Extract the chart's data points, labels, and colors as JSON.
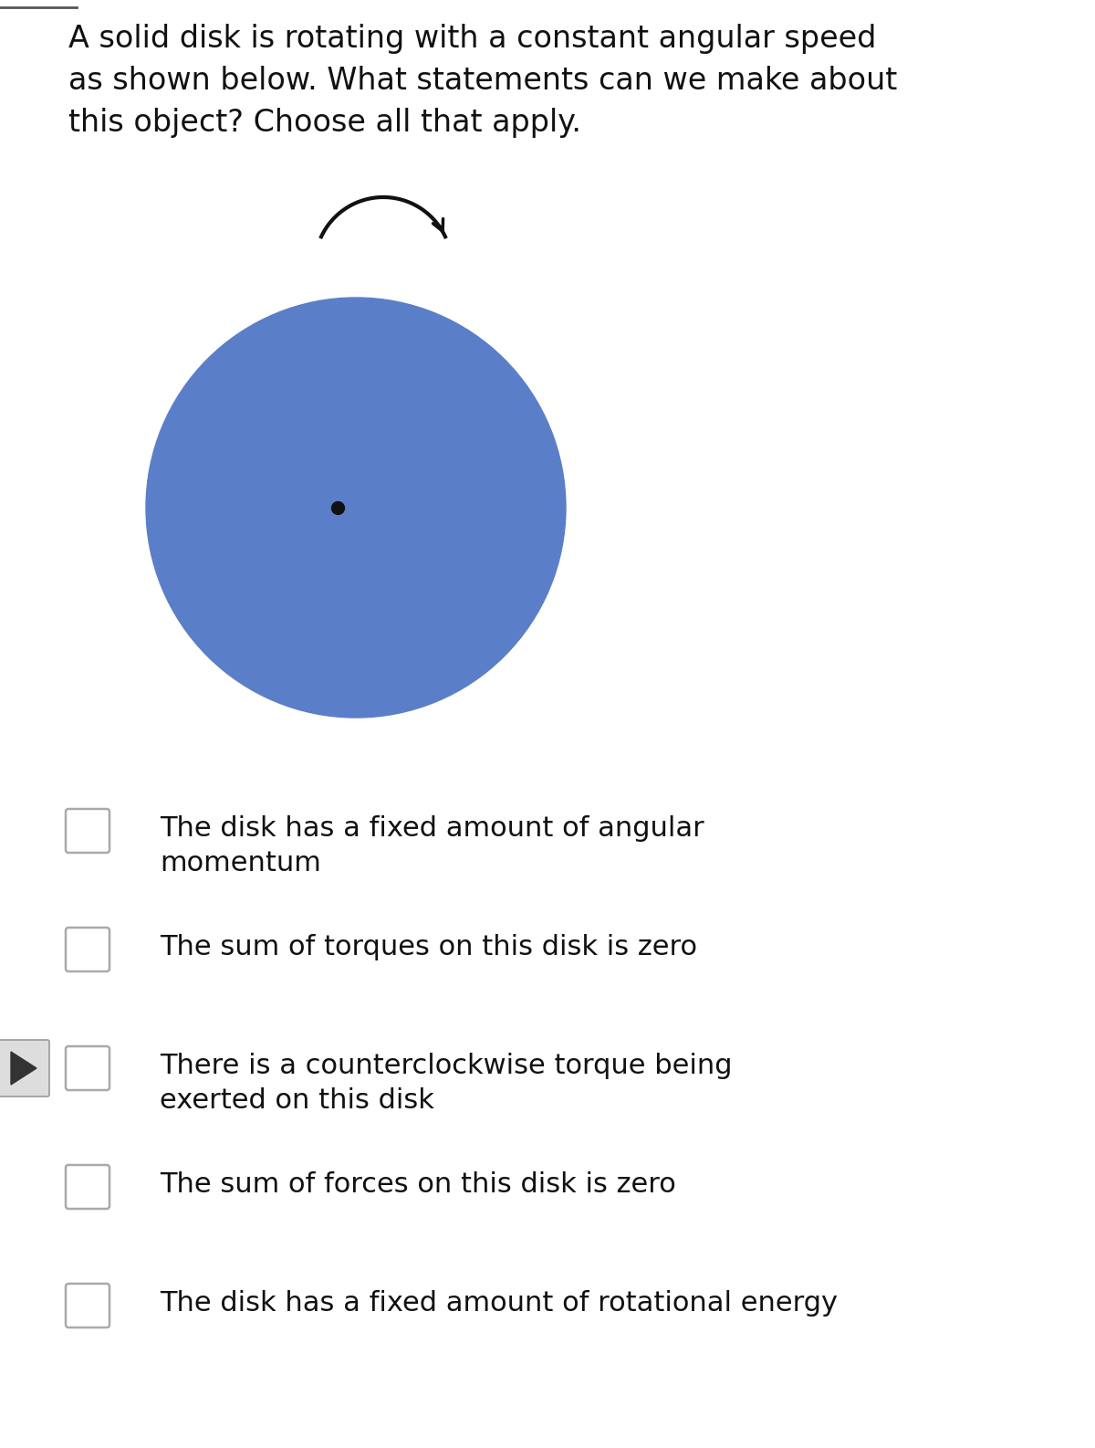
{
  "background_color": "#ffffff",
  "question_text": "A solid disk is rotating with a constant angular speed\nas shown below. What statements can we make about\nthis object? Choose all that apply.",
  "question_fontsize": 24,
  "disk_color": "#5b7ec9",
  "dot_color": "#111111",
  "arrow_color": "#111111",
  "choices": [
    "The disk has a fixed amount of angular\nmomentum",
    "The sum of torques on this disk is zero",
    "There is a counterclockwise torque being\nexerted on this disk",
    "The sum of forces on this disk is zero",
    "The disk has a fixed amount of rotational energy"
  ],
  "choice_fontsize": 22
}
